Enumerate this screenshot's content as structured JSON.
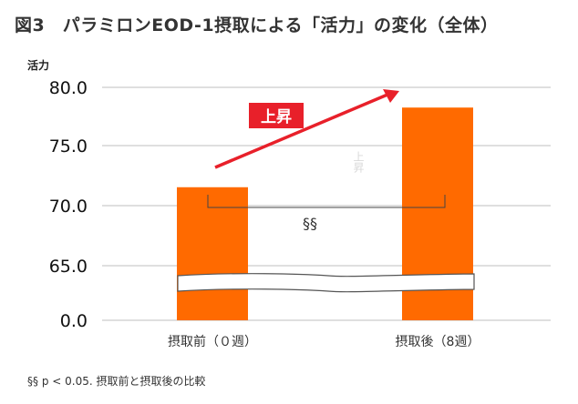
{
  "figure_title": "図3　パラミロンEOD-1摂取による「活力」の変化（全体）",
  "chart_data": {
    "type": "bar",
    "ylabel": "活力",
    "categories": [
      "摂取前（０週）",
      "摂取後（8週）"
    ],
    "values": [
      71.6,
      78.3
    ],
    "yticks": [
      "80.0",
      "75.0",
      "70.0",
      "65.0",
      "0.0"
    ],
    "ylim": [
      0.0,
      80.0
    ],
    "axis_break": "between 0.0 and 65.0",
    "grid": true,
    "bar_color": "#ff6a00",
    "arrow_color": "#e8202a",
    "arrow_label": "上昇",
    "faint_label": "上昇",
    "significance_mark": "§§"
  },
  "footnote": "§§ p < 0.05. 摂取前と摂取後の比較"
}
